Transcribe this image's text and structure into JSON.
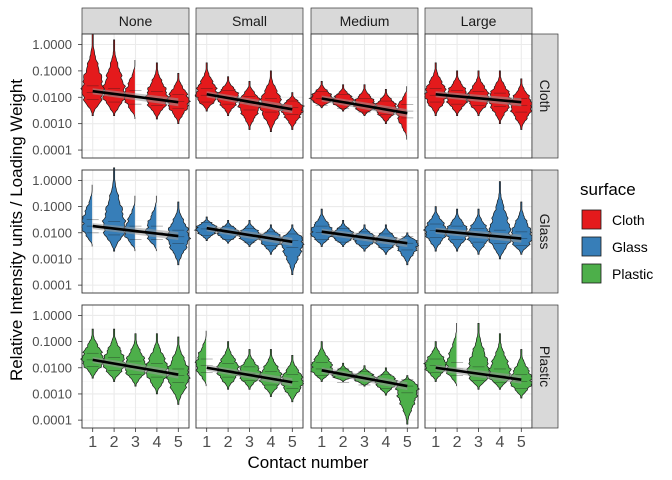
{
  "chart_data": {
    "type": "violin",
    "xlabel": "Contact number",
    "ylabel": "Relative Intensity units / Loading Weight",
    "y_scale": "log10",
    "ylim": [
      5e-05,
      2.5
    ],
    "y_ticks": [
      0.0001,
      0.001,
      0.01,
      0.1,
      1
    ],
    "y_tick_labels": [
      "0.0001",
      "0.0010",
      "0.0100",
      "0.1000",
      "1.0000"
    ],
    "x_categories": [
      "1",
      "2",
      "3",
      "4",
      "5"
    ],
    "facet_columns": [
      "None",
      "Small",
      "Medium",
      "Large"
    ],
    "facet_rows": [
      "Cloth",
      "Glass",
      "Plastic"
    ],
    "legend": {
      "title": "surface",
      "entries": [
        {
          "label": "Cloth",
          "color": "#e41a1c"
        },
        {
          "label": "Glass",
          "color": "#377eb8"
        },
        {
          "label": "Plastic",
          "color": "#4daf4a"
        }
      ],
      "position": "right"
    },
    "trend_line": {
      "color": "#000000",
      "ribbon": "#999999"
    },
    "grid": true,
    "panels": {
      "Cloth": {
        "None": [
          {
            "lo": 0.002,
            "hi": 2.5,
            "med": 0.015
          },
          {
            "lo": 0.002,
            "hi": 1.5,
            "med": 0.012
          },
          {
            "lo": 0.0015,
            "hi": 0.3,
            "med": 0.01
          },
          {
            "lo": 0.0015,
            "hi": 0.2,
            "med": 0.009
          },
          {
            "lo": 0.001,
            "hi": 0.08,
            "med": 0.007
          }
        ],
        "Small": [
          {
            "lo": 0.003,
            "hi": 0.2,
            "med": 0.012
          },
          {
            "lo": 0.002,
            "hi": 0.06,
            "med": 0.01
          },
          {
            "lo": 0.0006,
            "hi": 0.04,
            "med": 0.006
          },
          {
            "lo": 0.0005,
            "hi": 0.1,
            "med": 0.005
          },
          {
            "lo": 0.0006,
            "hi": 0.015,
            "med": 0.004
          }
        ],
        "Medium": [
          {
            "lo": 0.004,
            "hi": 0.04,
            "med": 0.009
          },
          {
            "lo": 0.003,
            "hi": 0.03,
            "med": 0.007
          },
          {
            "lo": 0.002,
            "hi": 0.03,
            "med": 0.005
          },
          {
            "lo": 0.001,
            "hi": 0.02,
            "med": 0.004
          },
          {
            "lo": 0.00025,
            "hi": 0.03,
            "med": 0.003
          }
        ],
        "Large": [
          {
            "lo": 0.002,
            "hi": 0.2,
            "med": 0.012
          },
          {
            "lo": 0.002,
            "hi": 0.1,
            "med": 0.01
          },
          {
            "lo": 0.002,
            "hi": 0.1,
            "med": 0.009
          },
          {
            "lo": 0.001,
            "hi": 0.1,
            "med": 0.008
          },
          {
            "lo": 0.0006,
            "hi": 0.05,
            "med": 0.005
          }
        ]
      },
      "Glass": {
        "None": [
          {
            "lo": 0.003,
            "hi": 0.8,
            "med": 0.018
          },
          {
            "lo": 0.002,
            "hi": 3.0,
            "med": 0.015
          },
          {
            "lo": 0.002,
            "hi": 0.3,
            "med": 0.01
          },
          {
            "lo": 0.002,
            "hi": 0.3,
            "med": 0.01
          },
          {
            "lo": 0.0006,
            "hi": 0.15,
            "med": 0.007
          }
        ],
        "Small": [
          {
            "lo": 0.005,
            "hi": 0.04,
            "med": 0.014
          },
          {
            "lo": 0.004,
            "hi": 0.03,
            "med": 0.01
          },
          {
            "lo": 0.003,
            "hi": 0.03,
            "med": 0.008
          },
          {
            "lo": 0.0015,
            "hi": 0.02,
            "med": 0.006
          },
          {
            "lo": 0.00025,
            "hi": 0.02,
            "med": 0.005
          }
        ],
        "Medium": [
          {
            "lo": 0.003,
            "hi": 0.08,
            "med": 0.01
          },
          {
            "lo": 0.003,
            "hi": 0.03,
            "med": 0.008
          },
          {
            "lo": 0.002,
            "hi": 0.02,
            "med": 0.006
          },
          {
            "lo": 0.0015,
            "hi": 0.02,
            "med": 0.005
          },
          {
            "lo": 0.0006,
            "hi": 0.01,
            "med": 0.004
          }
        ],
        "Large": [
          {
            "lo": 0.002,
            "hi": 0.1,
            "med": 0.012
          },
          {
            "lo": 0.002,
            "hi": 0.08,
            "med": 0.01
          },
          {
            "lo": 0.0015,
            "hi": 0.08,
            "med": 0.008
          },
          {
            "lo": 0.001,
            "hi": 0.9,
            "med": 0.007
          },
          {
            "lo": 0.0015,
            "hi": 0.15,
            "med": 0.006
          }
        ]
      },
      "Plastic": {
        "None": [
          {
            "lo": 0.004,
            "hi": 0.3,
            "med": 0.02
          },
          {
            "lo": 0.003,
            "hi": 0.3,
            "med": 0.014
          },
          {
            "lo": 0.002,
            "hi": 0.2,
            "med": 0.01
          },
          {
            "lo": 0.001,
            "hi": 0.2,
            "med": 0.008
          },
          {
            "lo": 0.0004,
            "hi": 0.15,
            "med": 0.005
          }
        ],
        "Small": [
          {
            "lo": 0.002,
            "hi": 0.3,
            "med": 0.012
          },
          {
            "lo": 0.0015,
            "hi": 0.1,
            "med": 0.008
          },
          {
            "lo": 0.0015,
            "hi": 0.05,
            "med": 0.006
          },
          {
            "lo": 0.0008,
            "hi": 0.05,
            "med": 0.004
          },
          {
            "lo": 0.0005,
            "hi": 0.03,
            "med": 0.003
          }
        ],
        "Medium": [
          {
            "lo": 0.003,
            "hi": 0.1,
            "med": 0.009
          },
          {
            "lo": 0.003,
            "hi": 0.015,
            "med": 0.005
          },
          {
            "lo": 0.002,
            "hi": 0.012,
            "med": 0.004
          },
          {
            "lo": 0.0009,
            "hi": 0.01,
            "med": 0.003
          },
          {
            "lo": 7e-05,
            "hi": 0.005,
            "med": 0.002
          }
        ],
        "Large": [
          {
            "lo": 0.003,
            "hi": 0.1,
            "med": 0.012
          },
          {
            "lo": 0.002,
            "hi": 0.6,
            "med": 0.009
          },
          {
            "lo": 0.0015,
            "hi": 0.5,
            "med": 0.006
          },
          {
            "lo": 0.0015,
            "hi": 0.2,
            "med": 0.005
          },
          {
            "lo": 0.0007,
            "hi": 0.05,
            "med": 0.003
          }
        ]
      }
    },
    "trend_lines": {
      "Cloth": {
        "None": [
          0.017,
          0.0065
        ],
        "Small": [
          0.013,
          0.0035
        ],
        "Medium": [
          0.009,
          0.0025
        ],
        "Large": [
          0.013,
          0.0065
        ]
      },
      "Glass": {
        "None": [
          0.018,
          0.0075
        ],
        "Small": [
          0.015,
          0.0045
        ],
        "Medium": [
          0.011,
          0.004
        ],
        "Large": [
          0.012,
          0.006
        ]
      },
      "Plastic": {
        "None": [
          0.02,
          0.0055
        ],
        "Small": [
          0.01,
          0.0028
        ],
        "Medium": [
          0.008,
          0.002
        ],
        "Large": [
          0.01,
          0.0035
        ]
      }
    }
  }
}
